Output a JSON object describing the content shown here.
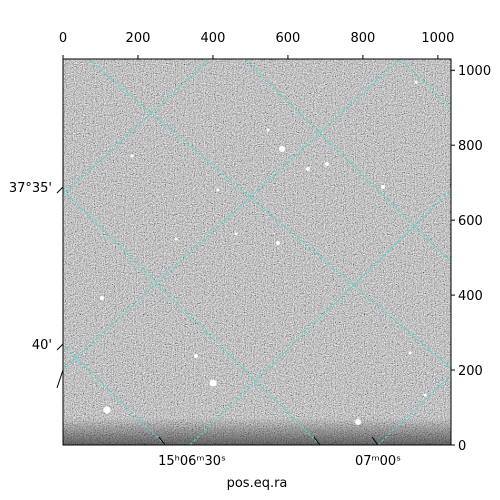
{
  "chart_data": {
    "type": "image",
    "xlabel": "pos.eq.ra",
    "xlim": [
      0,
      1035
    ],
    "xticks": [
      0,
      200,
      400,
      600,
      800,
      1000
    ],
    "ylim": [
      0,
      1030
    ],
    "yticks": [
      0,
      200,
      400,
      600,
      800,
      1000
    ],
    "ra_tick_labels": [
      "15ʰ06ᵐ30ˢ",
      "07ᵐ00ˢ"
    ],
    "dec_tick_labels": [
      "37°35'",
      "40'"
    ],
    "grid_color": "#40e0d0"
  }
}
